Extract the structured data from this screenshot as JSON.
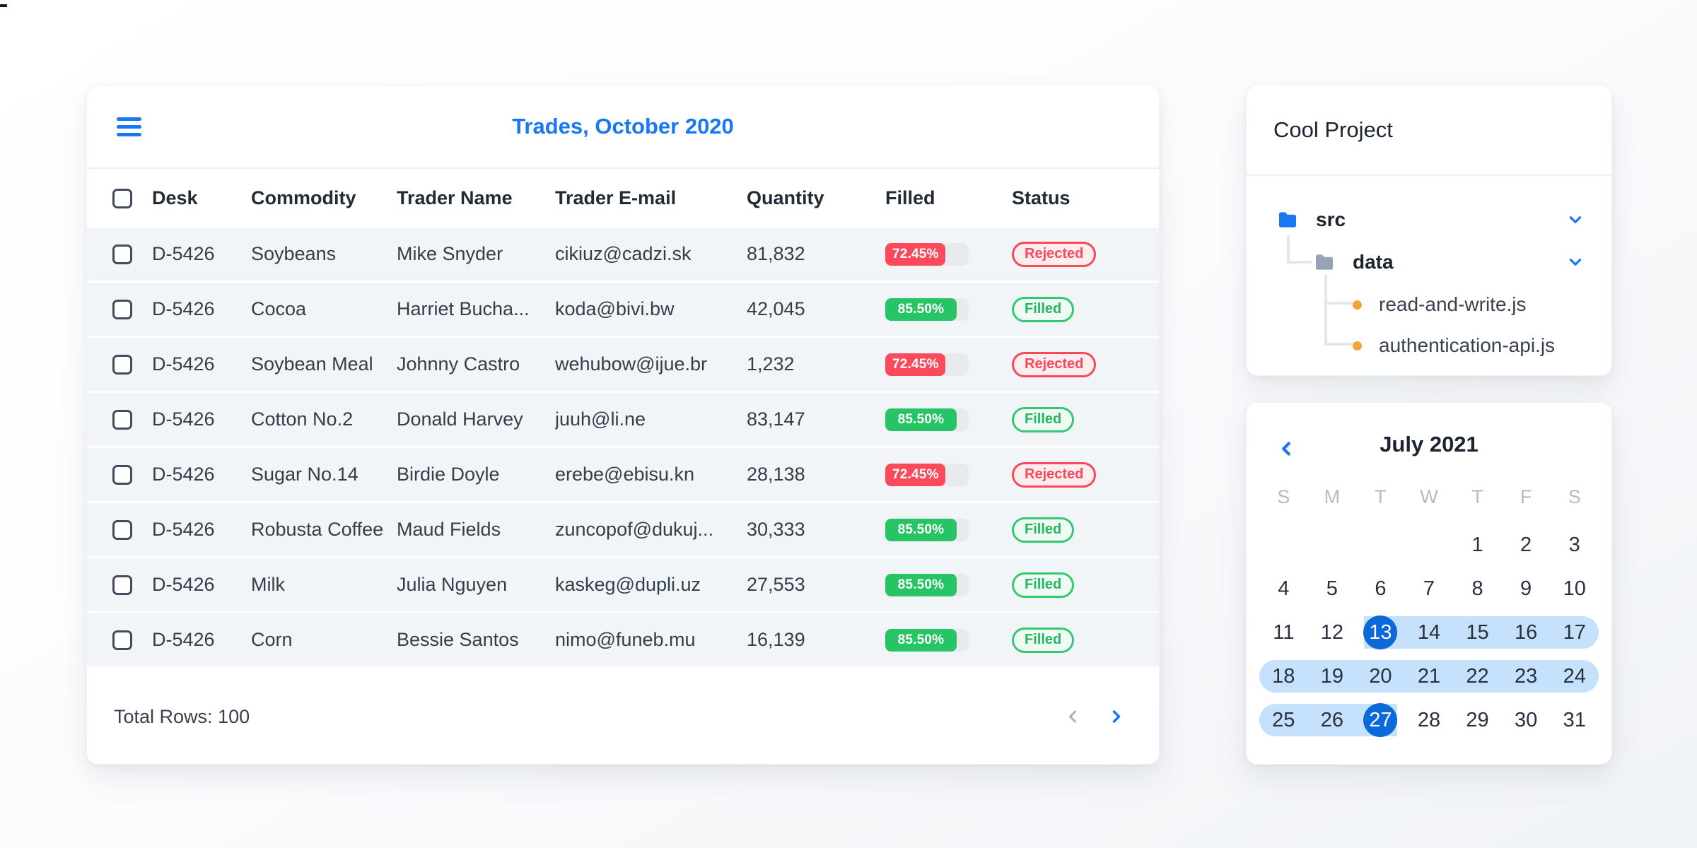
{
  "colors": {
    "accent_blue": "#1877F2",
    "selected_day_blue": "#0B69D8",
    "range_band_blue": "#C6E1FC",
    "progress_red": "#FA4A5C",
    "badge_red_bg": "#FEEDEE",
    "progress_green": "#26C465",
    "badge_green_bg": "#EEFAF3",
    "progress_track": "#E8EAED",
    "row_background": "#F2F5F7",
    "file_dot_amber": "#F0A43B"
  },
  "icons": {
    "menu": "hamburger-icon",
    "prev_page": "chevron-left-icon",
    "next_page": "chevron-right-icon",
    "tree_collapse": "chevron-down-icon",
    "calendar_prev": "chevron-left-icon",
    "folder": "folder-icon",
    "file": "dot-icon"
  },
  "trades_table": {
    "title": "Trades, October 2020",
    "columns": [
      "Desk",
      "Commodity",
      "Trader Name",
      "Trader E-mail",
      "Quantity",
      "Filled",
      "Status"
    ],
    "rows": [
      {
        "desk": "D-5426",
        "commodity": "Soybeans",
        "trader": "Mike Snyder",
        "email": "cikiuz@cadzi.sk",
        "quantity": "81,832",
        "filled_pct": "72.45%",
        "filled_value": 72.45,
        "status": "Rejected"
      },
      {
        "desk": "D-5426",
        "commodity": "Cocoa",
        "trader": "Harriet Bucha...",
        "email": "koda@bivi.bw",
        "quantity": "42,045",
        "filled_pct": "85.50%",
        "filled_value": 85.5,
        "status": "Filled"
      },
      {
        "desk": "D-5426",
        "commodity": "Soybean Meal",
        "trader": "Johnny Castro",
        "email": "wehubow@ijue.br",
        "quantity": "1,232",
        "filled_pct": "72.45%",
        "filled_value": 72.45,
        "status": "Rejected"
      },
      {
        "desk": "D-5426",
        "commodity": "Cotton No.2",
        "trader": "Donald Harvey",
        "email": "juuh@li.ne",
        "quantity": "83,147",
        "filled_pct": "85.50%",
        "filled_value": 85.5,
        "status": "Filled"
      },
      {
        "desk": "D-5426",
        "commodity": "Sugar No.14",
        "trader": "Birdie Doyle",
        "email": "erebe@ebisu.kn",
        "quantity": "28,138",
        "filled_pct": "72.45%",
        "filled_value": 72.45,
        "status": "Rejected"
      },
      {
        "desk": "D-5426",
        "commodity": "Robusta Coffee",
        "trader": "Maud Fields",
        "email": "zuncopof@dukuj...",
        "quantity": "30,333",
        "filled_pct": "85.50%",
        "filled_value": 85.5,
        "status": "Filled"
      },
      {
        "desk": "D-5426",
        "commodity": "Milk",
        "trader": "Julia Nguyen",
        "email": "kaskeg@dupli.uz",
        "quantity": "27,553",
        "filled_pct": "85.50%",
        "filled_value": 85.5,
        "status": "Filled"
      },
      {
        "desk": "D-5426",
        "commodity": "Corn",
        "trader": "Bessie Santos",
        "email": "nimo@funeb.mu",
        "quantity": "16,139",
        "filled_pct": "85.50%",
        "filled_value": 85.5,
        "status": "Filled"
      }
    ],
    "footer": {
      "total_rows": "Total Rows: 100"
    }
  },
  "file_tree": {
    "title": "Cool Project",
    "folders": [
      {
        "name": "src",
        "color": "blue",
        "expanded": true
      },
      {
        "name": "data",
        "color": "gray",
        "expanded": true
      }
    ],
    "files": [
      "read-and-write.js",
      "authentication-api.js"
    ]
  },
  "calendar": {
    "title": "July 2021",
    "day_headers": [
      "S",
      "M",
      "T",
      "W",
      "T",
      "F",
      "S"
    ],
    "weeks": [
      {
        "days": [
          "",
          "",
          "",
          "",
          "1",
          "2",
          "3"
        ]
      },
      {
        "days": [
          "4",
          "5",
          "6",
          "7",
          "8",
          "9",
          "10"
        ]
      },
      {
        "days": [
          "11",
          "12",
          "13",
          "14",
          "15",
          "16",
          "17"
        ],
        "range": {
          "from": 2,
          "to": 6,
          "cap_left": false,
          "cap_right": true
        },
        "selected": [
          2
        ]
      },
      {
        "days": [
          "18",
          "19",
          "20",
          "21",
          "22",
          "23",
          "24"
        ],
        "range": {
          "from": 0,
          "to": 6,
          "cap_left": true,
          "cap_right": true
        }
      },
      {
        "days": [
          "25",
          "26",
          "27",
          "28",
          "29",
          "30",
          "31"
        ],
        "range": {
          "from": 0,
          "to": 2,
          "cap_left": true,
          "cap_right": false
        },
        "selected": [
          2
        ]
      }
    ],
    "selected_range": {
      "start": "13",
      "end": "27"
    }
  }
}
